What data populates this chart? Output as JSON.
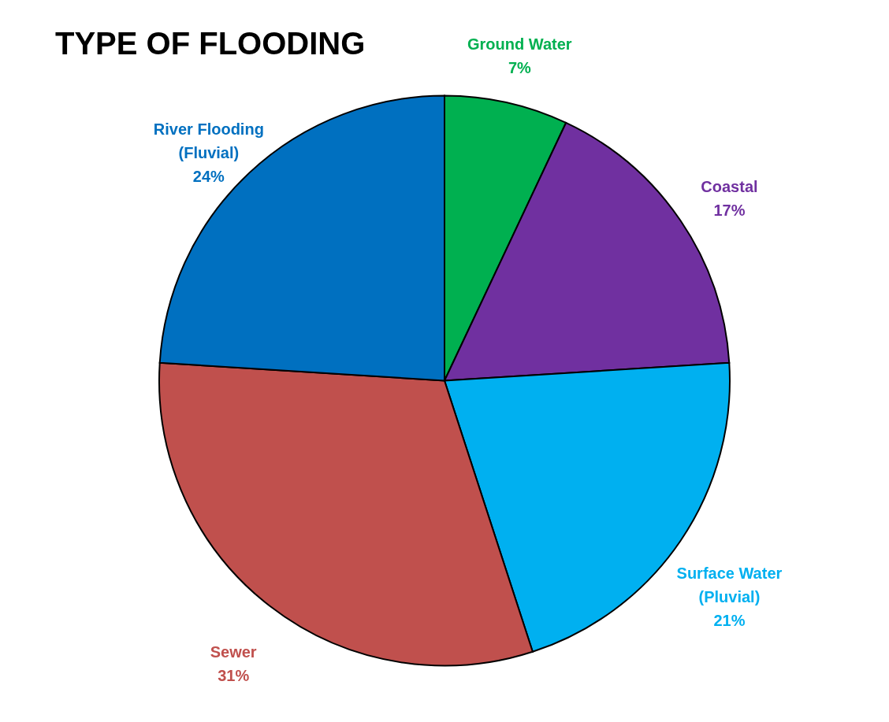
{
  "chart_data": {
    "type": "pie",
    "title": "TYPE OF FLOODING",
    "categories": [
      "Ground Water",
      "Coastal",
      "Surface Water (Pluvial)",
      "Sewer",
      "River Flooding (Fluvial)"
    ],
    "values": [
      7,
      17,
      21,
      31,
      24
    ],
    "colors": [
      "#00b050",
      "#7030a0",
      "#00b0f0",
      "#c0504d",
      "#0070c0"
    ],
    "value_labels": [
      "7%",
      "17%",
      "21%",
      "31%",
      "24%"
    ],
    "legend": false
  }
}
